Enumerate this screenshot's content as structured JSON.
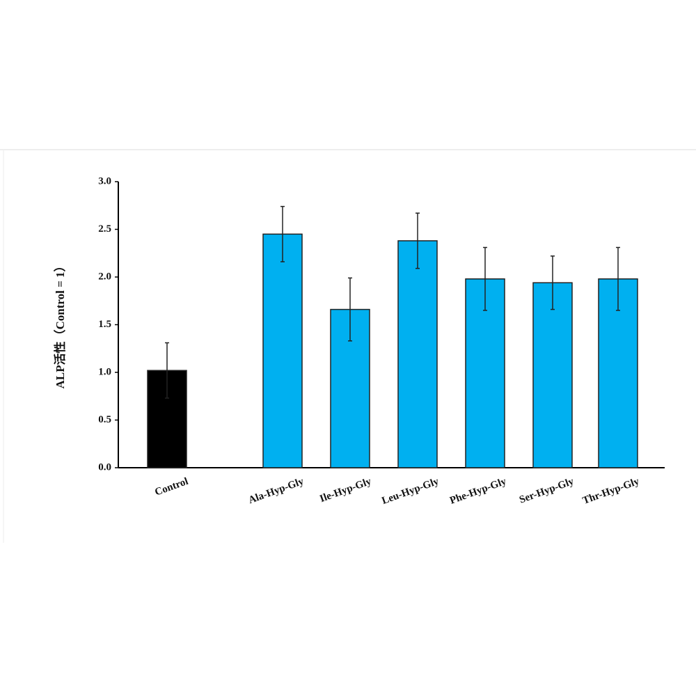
{
  "chart_data": {
    "type": "bar",
    "y_label": "ALP活性（Control = 1）",
    "categories": [
      "Control",
      "Ala-Hyp-Gly",
      "Ile-Hyp-Gly",
      "Leu-Hyp-Gly",
      "Phe-Hyp-Gly",
      "Ser-Hyp-Gly",
      "Thr-Hyp-Gly"
    ],
    "values": [
      1.02,
      2.45,
      1.66,
      2.38,
      1.98,
      1.94,
      1.98
    ],
    "errors": [
      0.29,
      0.29,
      0.33,
      0.29,
      0.33,
      0.28,
      0.33
    ],
    "colors": [
      "#000000",
      "#00b0f0",
      "#00b0f0",
      "#00b0f0",
      "#00b0f0",
      "#00b0f0",
      "#00b0f0"
    ],
    "ylim": [
      0,
      3
    ],
    "yticks": [
      {
        "value": 0,
        "label": "0.0"
      },
      {
        "value": 0.5,
        "label": "0.5"
      },
      {
        "value": 1,
        "label": "1.0"
      },
      {
        "value": 1.5,
        "label": "1.5"
      },
      {
        "value": 2,
        "label": "2.0"
      },
      {
        "value": 2.5,
        "label": "2.5"
      },
      {
        "value": 3,
        "label": "3.0"
      }
    ]
  }
}
